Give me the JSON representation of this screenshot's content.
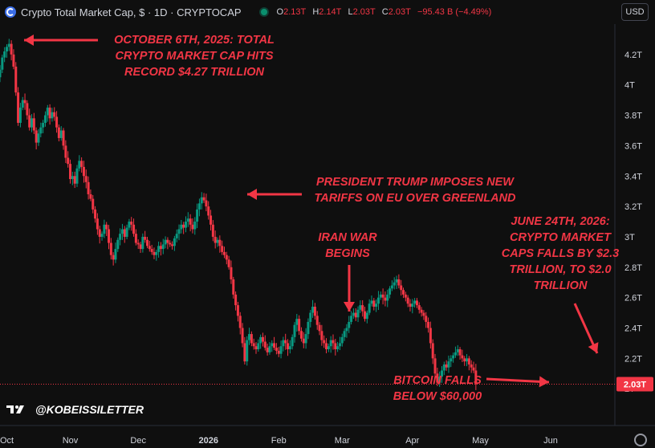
{
  "header": {
    "title": "Crypto Total Market Cap, $ · 1D · CRYPTOCAP",
    "ohlc": [
      {
        "k": "O",
        "v": "2.13T"
      },
      {
        "k": "H",
        "v": "2.14T"
      },
      {
        "k": "L",
        "v": "2.03T"
      },
      {
        "k": "C",
        "v": "2.03T"
      }
    ],
    "change": "−95.43 B (−4.49%)",
    "currency": "USD"
  },
  "watermark": "@KOBEISSILETTER",
  "annotations": [
    "OCTOBER 6TH, 2025: TOTAL\nCRYPTO MARKET CAP HITS\nRECORD $4.27 TRILLION",
    "PRESIDENT TRUMP IMPOSES NEW\nTARIFFS ON EU OVER GREENLAND",
    "IRAN WAR\nBEGINS",
    "JUNE 24TH, 2026:\nCRYPTO MARKET\nCAPS FALLS BY $2.3\nTRILLION, TO $2.0\nTRILLION",
    "BITCOIN FALLS\nBELOW $60,000"
  ],
  "colors": {
    "up": "#089981",
    "down": "#f23645",
    "annotation": "#f23645",
    "background": "#0f0f0f"
  },
  "chart_data": {
    "type": "candlestick",
    "ylim": [
      1.98,
      4.4
    ],
    "y_ticks": [
      "2T",
      "2.2T",
      "2.4T",
      "2.6T",
      "2.8T",
      "3T",
      "3.2T",
      "3.4T",
      "3.6T",
      "3.8T",
      "4T",
      "4.2T"
    ],
    "y_tick_values": [
      2.0,
      2.2,
      2.4,
      2.6,
      2.8,
      3.0,
      3.2,
      3.4,
      3.6,
      3.8,
      4.0,
      4.2
    ],
    "x_ticks": [
      "Oct",
      "Nov",
      "Dec",
      "2026",
      "Feb",
      "Mar",
      "Apr",
      "May",
      "Jun"
    ],
    "x_tick_dates": [
      "2025-10-01",
      "2025-11-01",
      "2025-12-01",
      "2026-01-01",
      "2026-02-01",
      "2026-03-01",
      "2026-04-01",
      "2026-05-01",
      "2026-06-01"
    ],
    "last_price_label": "2.03T",
    "last_price": 2.03,
    "close_series": {
      "start_date": "2025-09-30",
      "closes": [
        4.05,
        4.1,
        4.18,
        4.22,
        4.25,
        4.27,
        4.2,
        4.12,
        3.95,
        3.75,
        3.85,
        3.9,
        3.88,
        3.8,
        3.72,
        3.78,
        3.7,
        3.62,
        3.68,
        3.72,
        3.75,
        3.8,
        3.85,
        3.78,
        3.82,
        3.79,
        3.72,
        3.65,
        3.7,
        3.6,
        3.52,
        3.48,
        3.38,
        3.4,
        3.35,
        3.45,
        3.5,
        3.46,
        3.4,
        3.36,
        3.28,
        3.25,
        3.18,
        3.12,
        3.05,
        3.0,
        3.02,
        3.08,
        3.05,
        2.96,
        2.88,
        2.85,
        2.92,
        2.98,
        3.02,
        3.05,
        3.0,
        3.06,
        3.1,
        3.08,
        3.02,
        2.96,
        2.95,
        2.92,
        3.0,
        2.98,
        2.94,
        2.92,
        2.9,
        2.88,
        2.9,
        2.94,
        2.92,
        2.95,
        2.98,
        2.96,
        2.95,
        2.94,
        2.99,
        3.02,
        3.05,
        3.08,
        3.06,
        3.1,
        3.12,
        3.08,
        3.05,
        3.1,
        3.18,
        3.22,
        3.26,
        3.24,
        3.2,
        3.14,
        3.08,
        3.0,
        2.96,
        2.98,
        2.94,
        2.9,
        2.88,
        2.85,
        2.8,
        2.72,
        2.62,
        2.55,
        2.48,
        2.4,
        2.3,
        2.18,
        2.32,
        2.36,
        2.3,
        2.28,
        2.26,
        2.3,
        2.34,
        2.31,
        2.27,
        2.24,
        2.28,
        2.3,
        2.27,
        2.25,
        2.23,
        2.28,
        2.32,
        2.3,
        2.26,
        2.28,
        2.34,
        2.42,
        2.46,
        2.38,
        2.33,
        2.3,
        2.36,
        2.44,
        2.5,
        2.54,
        2.48,
        2.42,
        2.38,
        2.32,
        2.3,
        2.26,
        2.28,
        2.32,
        2.3,
        2.26,
        2.28,
        2.3,
        2.34,
        2.38,
        2.4,
        2.44,
        2.48,
        2.5,
        2.47,
        2.52,
        2.55,
        2.51,
        2.46,
        2.5,
        2.56,
        2.58,
        2.54,
        2.56,
        2.6,
        2.62,
        2.6,
        2.58,
        2.62,
        2.66,
        2.68,
        2.7,
        2.72,
        2.68,
        2.65,
        2.62,
        2.6,
        2.56,
        2.54,
        2.56,
        2.58,
        2.55,
        2.52,
        2.5,
        2.48,
        2.44,
        2.4,
        2.3,
        2.2,
        2.1,
        2.04,
        2.08,
        2.12,
        2.16,
        2.14,
        2.18,
        2.2,
        2.22,
        2.24,
        2.26,
        2.22,
        2.2,
        2.18,
        2.2,
        2.16,
        2.14,
        2.12,
        2.03
      ]
    }
  }
}
